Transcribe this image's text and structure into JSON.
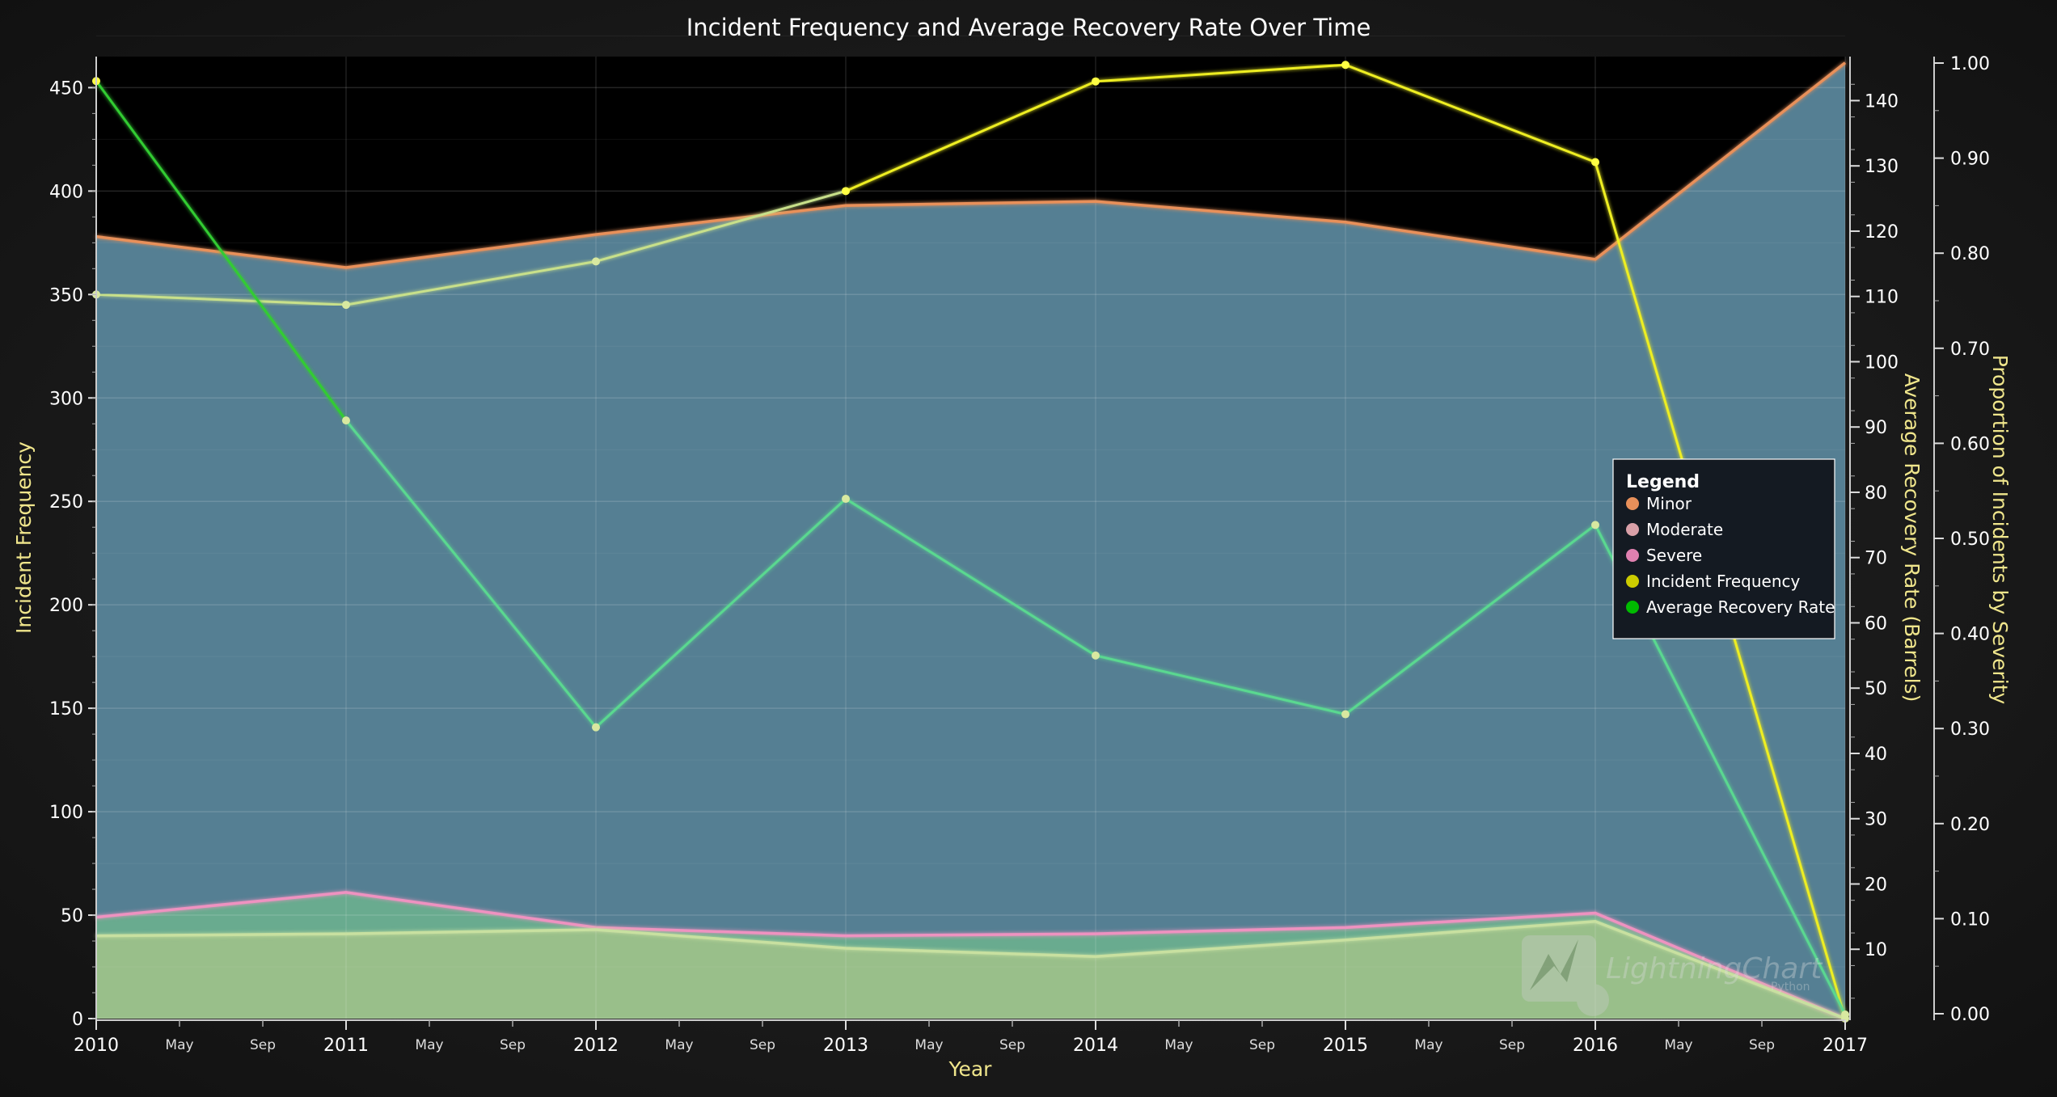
{
  "chart_data": {
    "type": "area",
    "title": "Incident Frequency and Average Recovery Rate Over Time",
    "xlabel": "Year",
    "x": [
      2010,
      2011,
      2012,
      2013,
      2014,
      2015,
      2016,
      2017
    ],
    "x_ticks_major": [
      "2010",
      "2011",
      "2012",
      "2013",
      "2014",
      "2015",
      "2016",
      "2017"
    ],
    "x_ticks_minor": [
      "May",
      "Sep"
    ],
    "axes": {
      "incident_frequency": {
        "label": "Incident Frequency",
        "range": [
          0,
          465
        ],
        "ticks": [
          0,
          50,
          100,
          150,
          200,
          250,
          300,
          350,
          400,
          450
        ]
      },
      "recovery_rate": {
        "label": "Average Recovery Rate (Barrels)",
        "range": [
          0,
          146
        ],
        "ticks": [
          10,
          20,
          30,
          40,
          50,
          60,
          70,
          80,
          90,
          100,
          110,
          120,
          130,
          140
        ]
      },
      "proportion": {
        "label": "Proportion of Incidents by Severity",
        "range": [
          0,
          1.0
        ],
        "ticks": [
          "0.00",
          "0.10",
          "0.20",
          "0.30",
          "0.40",
          "0.50",
          "0.60",
          "0.70",
          "0.80",
          "0.90",
          "1.00"
        ]
      }
    },
    "series": [
      {
        "name": "Minor",
        "axis": "incident_frequency",
        "kind": "area",
        "color": "#e8905a",
        "fill": "#557f93",
        "values": [
          378,
          363,
          379,
          393,
          395,
          385,
          367,
          462
        ]
      },
      {
        "name": "Moderate",
        "axis": "incident_frequency",
        "kind": "area",
        "color": "#c8e0a0",
        "fill": "#9cc08a",
        "values": [
          40,
          41,
          43,
          34,
          30,
          38,
          47,
          0
        ]
      },
      {
        "name": "Severe",
        "axis": "incident_frequency",
        "kind": "area",
        "color": "#ee92c0",
        "fill": "#6aae8e",
        "values": [
          49,
          61,
          44,
          40,
          41,
          44,
          51,
          0
        ]
      },
      {
        "name": "Incident Frequency",
        "axis": "incident_frequency",
        "kind": "line",
        "color": "#eeee22",
        "values": [
          350,
          345,
          366,
          400,
          453,
          461,
          414,
          0
        ]
      },
      {
        "name": "Average Recovery Rate",
        "axis": "recovery_rate",
        "kind": "line",
        "color": "#33cc33",
        "values": [
          143,
          91,
          44,
          79,
          55,
          46,
          75,
          0
        ]
      }
    ],
    "legend": {
      "title": "Legend",
      "placement": "right",
      "items": [
        {
          "label": "Minor",
          "color": "#e8905a"
        },
        {
          "label": "Moderate",
          "color": "#d9a0a8"
        },
        {
          "label": "Severe",
          "color": "#e080b0"
        },
        {
          "label": "Incident Frequency",
          "color": "#cccc00"
        },
        {
          "label": "Average Recovery Rate",
          "color": "#00bb00"
        }
      ]
    },
    "grid": true
  },
  "watermark": {
    "brand": "LightningChart",
    "sub": "Python"
  }
}
